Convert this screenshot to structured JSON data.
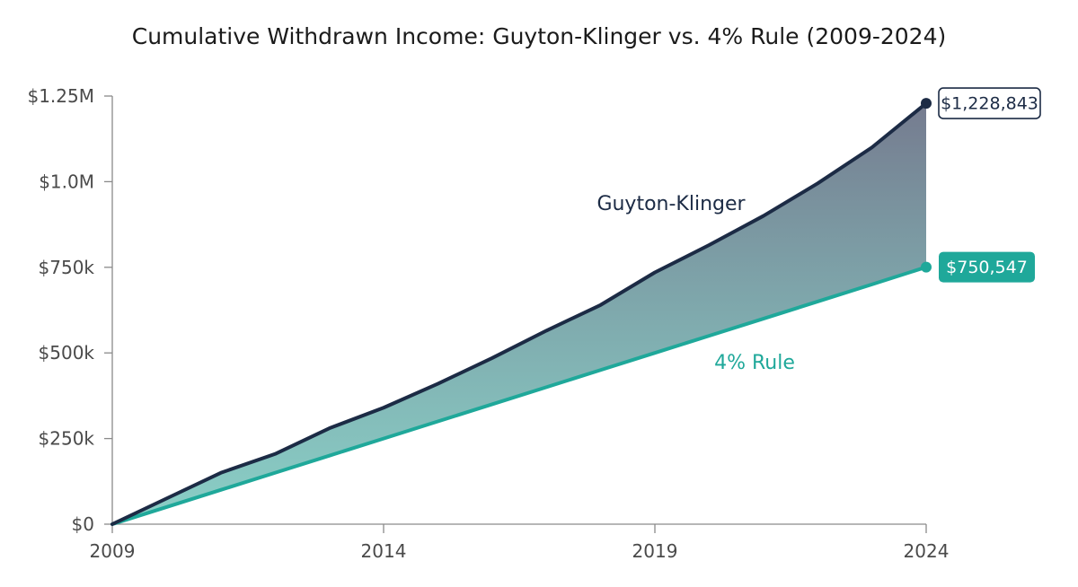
{
  "chart_data": {
    "type": "area",
    "title": "Cumulative Withdrawn Income: Guyton-Klinger vs. 4% Rule (2009-2024)",
    "xlabel": "",
    "ylabel": "",
    "x_ticks": [
      "2009",
      "2014",
      "2019",
      "2024"
    ],
    "y_ticks": [
      "$0",
      "$250k",
      "$500k",
      "$750k",
      "$1.0M",
      "$1.25M"
    ],
    "y_tick_values": [
      0,
      250000,
      500000,
      750000,
      1000000,
      1250000
    ],
    "xlim": [
      2009,
      2024
    ],
    "ylim": [
      0,
      1250000
    ],
    "x": [
      2009,
      2010,
      2011,
      2012,
      2013,
      2014,
      2015,
      2016,
      2017,
      2018,
      2019,
      2020,
      2021,
      2022,
      2023,
      2024
    ],
    "series": [
      {
        "name": "Guyton-Klinger",
        "color": "#1c2b45",
        "values": [
          0,
          75000,
          150000,
          205000,
          280000,
          340000,
          410000,
          485000,
          565000,
          640000,
          735000,
          815000,
          900000,
          995000,
          1100000,
          1228843
        ],
        "end_label": "$1,228,843"
      },
      {
        "name": "4% Rule",
        "color": "#1fa89a",
        "values": [
          0,
          50000,
          100000,
          150000,
          200000,
          250000,
          300000,
          350000,
          400000,
          450000,
          500000,
          550000,
          600000,
          650000,
          700000,
          750547
        ],
        "end_label": "$750,547"
      }
    ],
    "grid": false,
    "legend": "inline labels"
  }
}
